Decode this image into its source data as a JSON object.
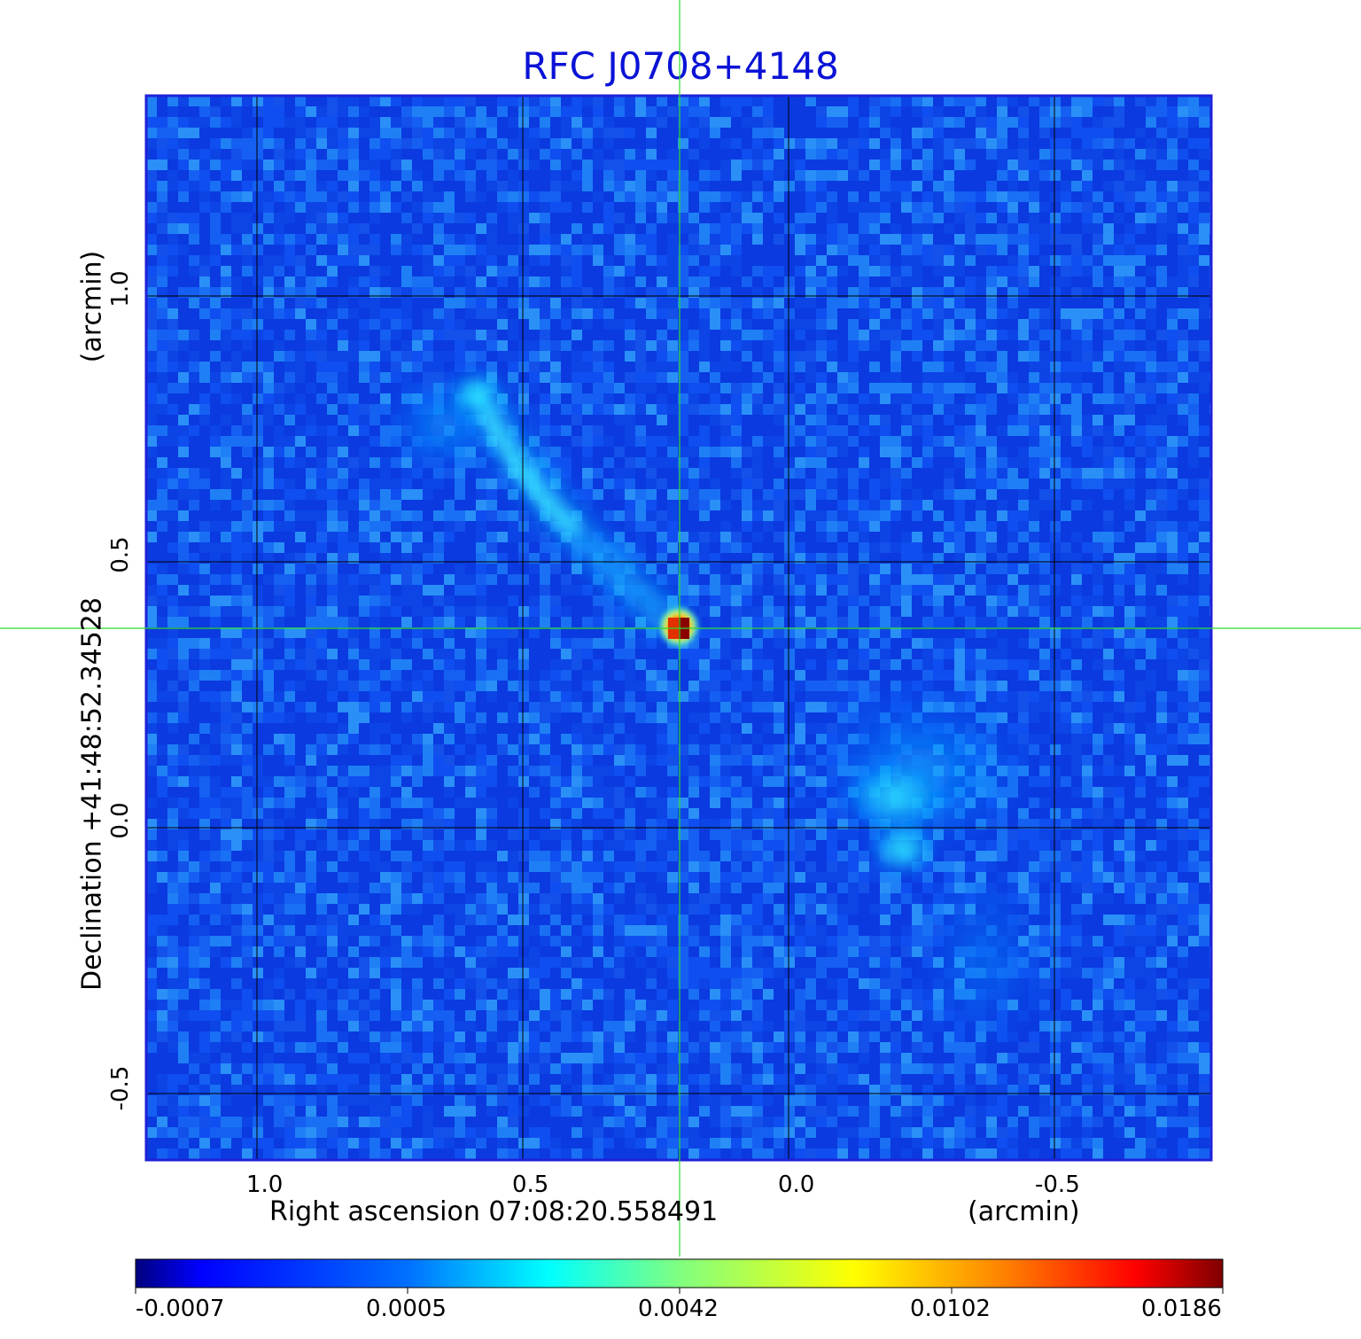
{
  "title": "RFC J0708+4148",
  "x_axis": {
    "label": "Right ascension  07:08:20.558491",
    "unit": "(arcmin)",
    "ticks": [
      "1.0",
      "0.5",
      "0.0",
      "-0.5"
    ]
  },
  "y_axis": {
    "label": "Declination  +41:48:52.34528",
    "unit": "(arcmin)",
    "ticks": [
      "1.0",
      "0.5",
      "0.0",
      "-0.5"
    ]
  },
  "colorbar": {
    "labels": [
      "-0.0007",
      "0.0005",
      "0.0042",
      "0.0102",
      "0.0186"
    ],
    "colormap": [
      "#00007f",
      "#0000ff",
      "#007fff",
      "#00ffff",
      "#7fff7f",
      "#ffff00",
      "#ff7f00",
      "#ff0000",
      "#7f0000"
    ]
  },
  "colors": {
    "title": "#0a12d6",
    "frame": "#1f22d9",
    "crosshair": "#2edb2e",
    "grid": "#000000"
  }
}
